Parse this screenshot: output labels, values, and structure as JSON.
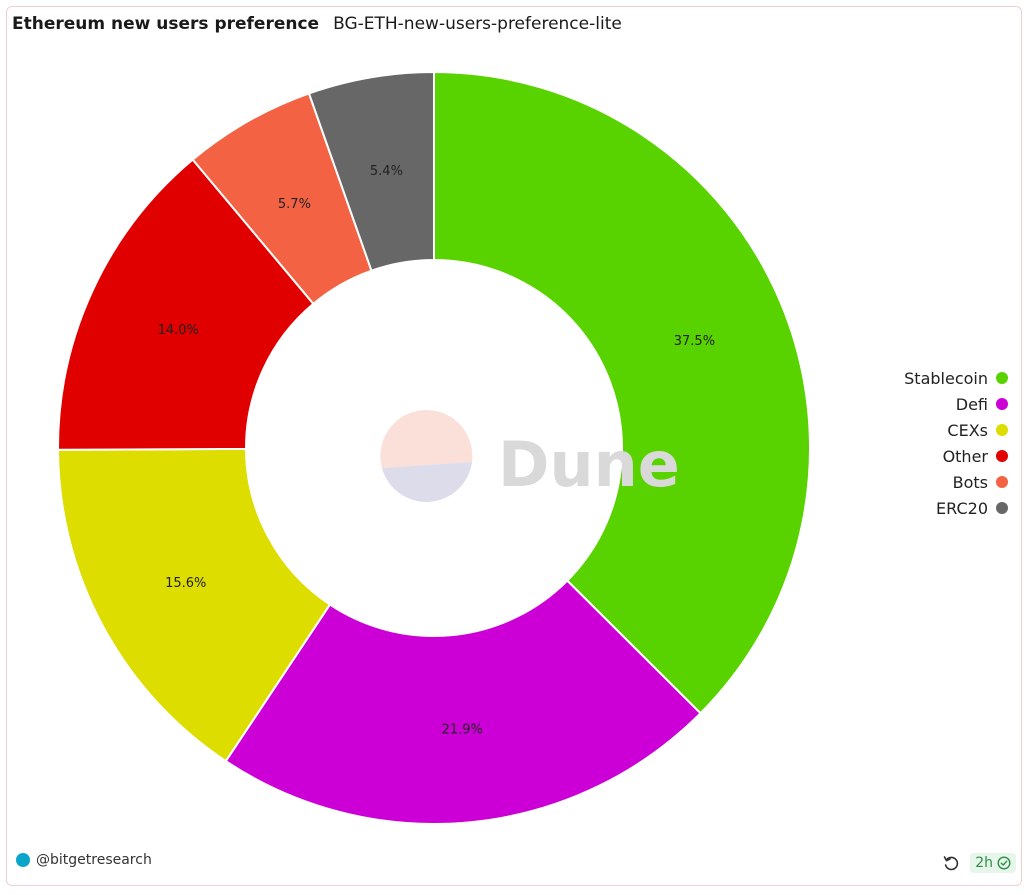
{
  "header": {
    "title": "Ethereum new users preference",
    "subtitle": "BG-ETH-new-users-preference-lite"
  },
  "chart_data": {
    "type": "pie",
    "donut": true,
    "legend_position": "right",
    "categories": [
      "Stablecoin",
      "Defi",
      "CEXs",
      "Other",
      "Bots",
      "ERC20"
    ],
    "values": [
      37.5,
      21.9,
      15.6,
      14.0,
      5.7,
      5.4
    ],
    "data_labels": [
      "37.5%",
      "21.9%",
      "15.6%",
      "14.0%",
      "5.7%",
      "5.4%"
    ],
    "colors": [
      "#58d300",
      "#cc00d6",
      "#dddd00",
      "#e00000",
      "#f46244",
      "#676767"
    ]
  },
  "watermark": {
    "text": "Dune"
  },
  "footer": {
    "author": "@bitgetresearch",
    "age": "2h"
  },
  "icons": {
    "refresh": "refresh-icon",
    "check": "check-circle-icon"
  }
}
